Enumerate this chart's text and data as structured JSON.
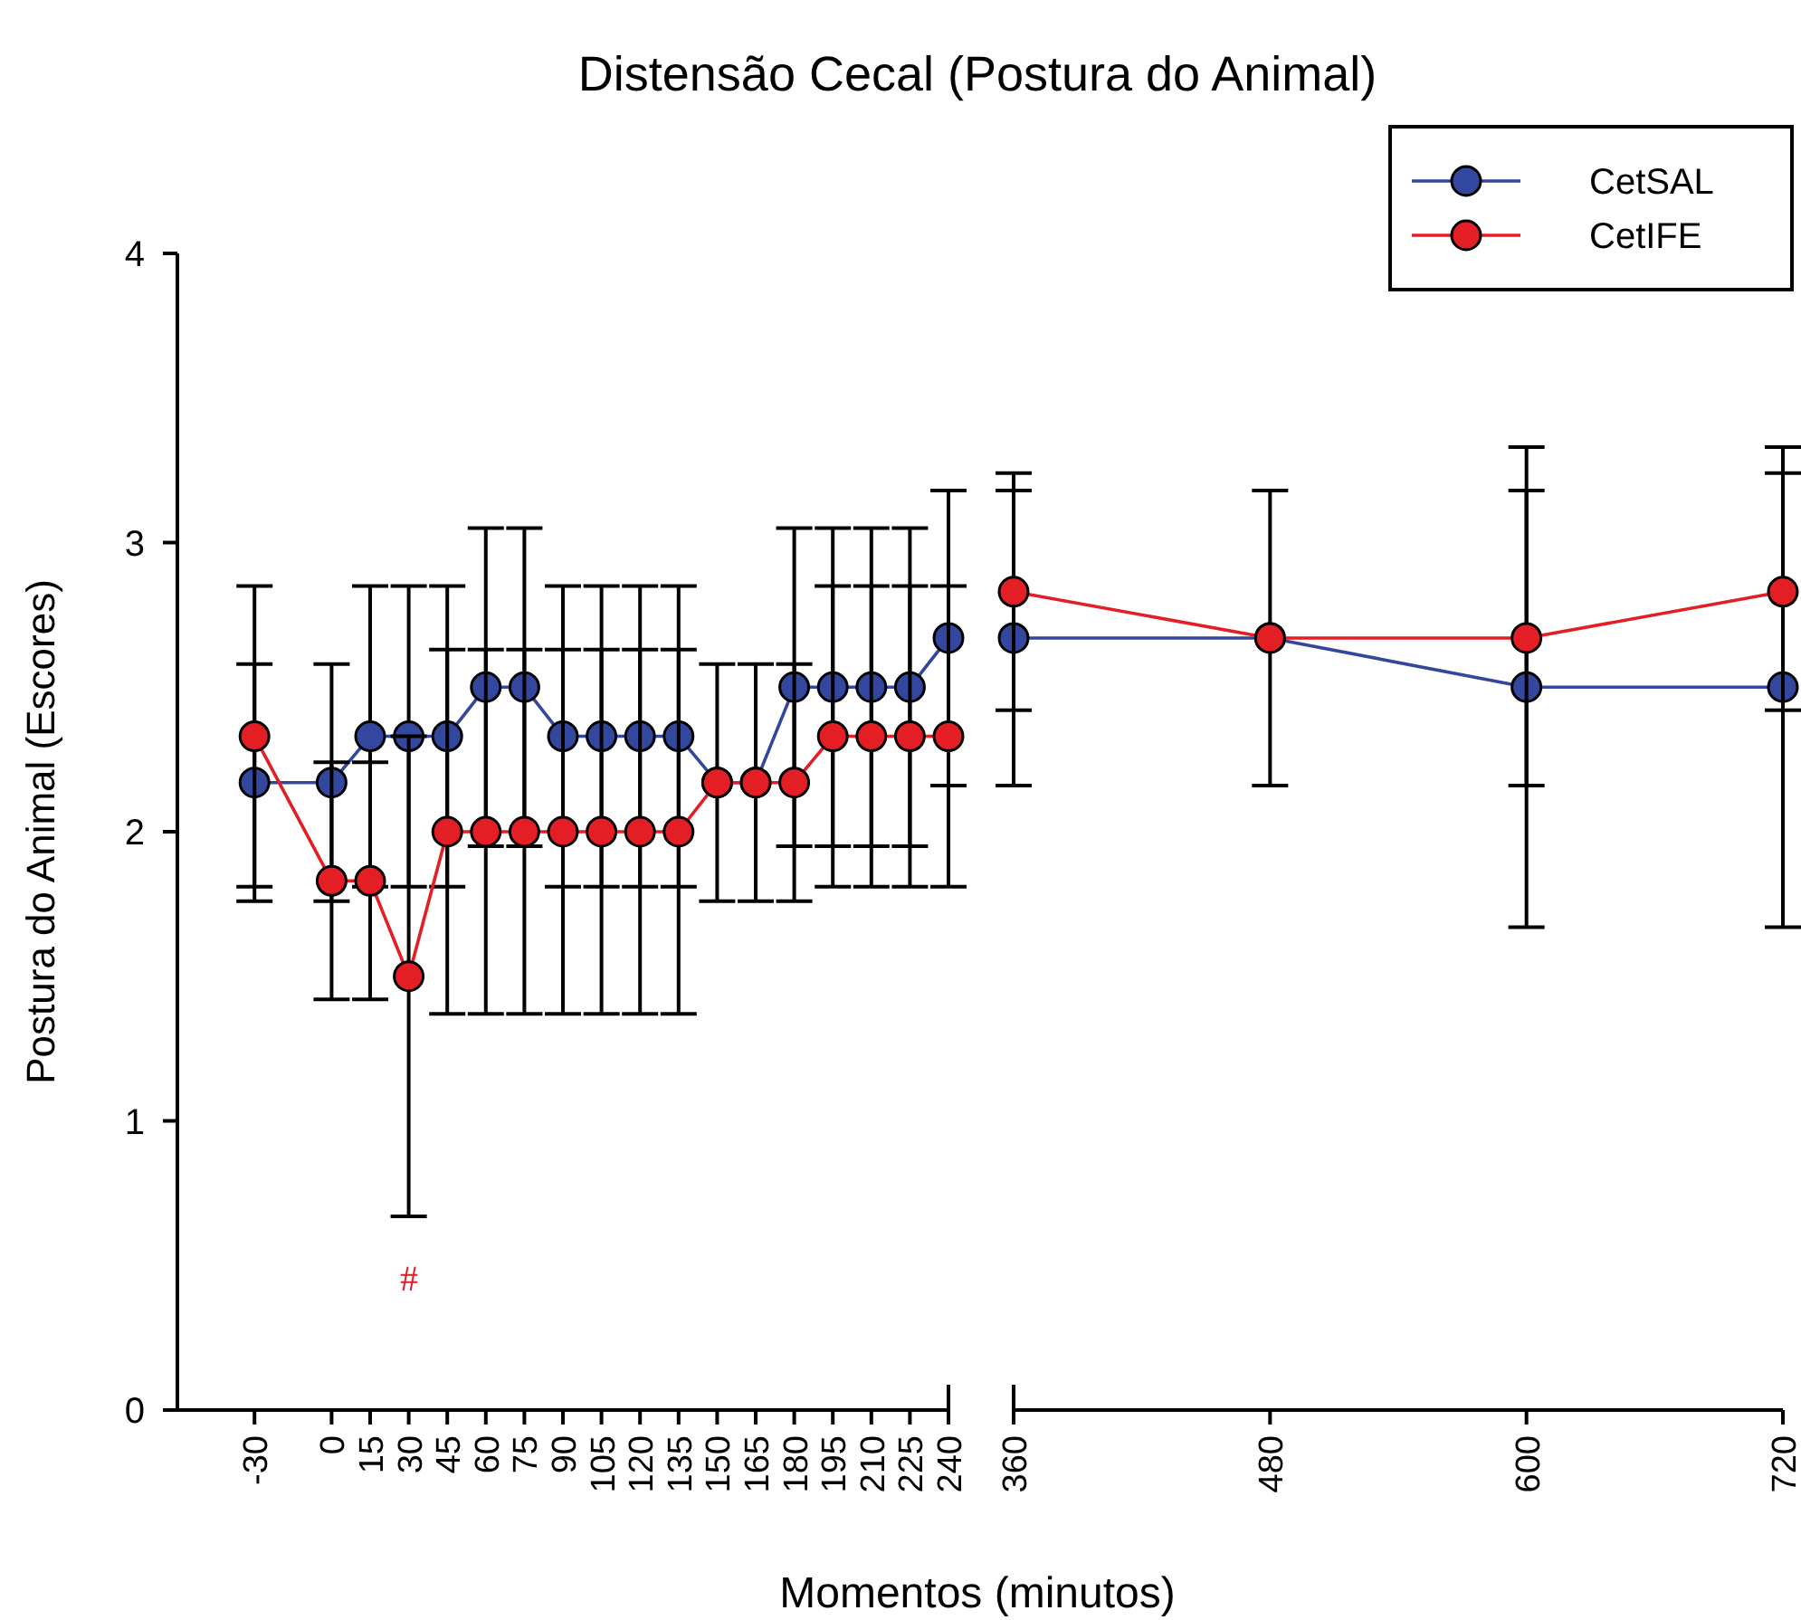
{
  "chart_data": [
    {
      "type": "line",
      "title": "Distensão Cecal (Postura do Animal)",
      "xlabel": "Momentos (minutos)",
      "ylabel": "Postura do Animal (Escores)",
      "x": [
        -30,
        0,
        15,
        30,
        45,
        60,
        75,
        90,
        105,
        120,
        135,
        150,
        165,
        180,
        195,
        210,
        225,
        240
      ],
      "series": [
        {
          "color": "#34479e",
          "values": [
            2.17,
            2.17,
            2.33,
            2.33,
            2.33,
            2.5,
            2.5,
            2.33,
            2.33,
            2.33,
            2.33,
            2.17,
            2.17,
            2.5,
            2.5,
            2.5,
            2.5,
            2.67
          ],
          "errors": [
            0.41,
            0.41,
            0.52,
            0.52,
            0.52,
            0.55,
            0.55,
            0.52,
            0.52,
            0.52,
            0.52,
            0.41,
            0.41,
            0.55,
            0.55,
            0.55,
            0.55,
            0.51
          ]
        },
        {
          "color": "#e31e24",
          "values": [
            2.33,
            1.83,
            1.83,
            1.5,
            2.0,
            2.0,
            2.0,
            2.0,
            2.0,
            2.0,
            2.0,
            2.17,
            2.17,
            2.17,
            2.33,
            2.33,
            2.33,
            2.33
          ],
          "errors": [
            0.52,
            0.41,
            0.41,
            0.83,
            0.63,
            0.63,
            0.63,
            0.63,
            0.63,
            0.63,
            0.63,
            0.41,
            0.41,
            0.41,
            0.52,
            0.52,
            0.52,
            0.52
          ]
        }
      ],
      "xlim": [
        -60,
        240
      ],
      "xticks": [
        -30,
        0,
        15,
        30,
        45,
        60,
        75,
        90,
        105,
        120,
        135,
        150,
        165,
        180,
        195,
        210,
        225,
        240
      ],
      "ylim": [
        0,
        4
      ],
      "yticks": [
        0,
        1,
        2,
        3,
        4
      ],
      "marker": "circle",
      "annotations": [
        "#"
      ]
    },
    {
      "type": "line",
      "x": [
        360,
        480,
        600,
        720
      ],
      "series": [
        {
          "name": "CetSAL",
          "color": "#34479e",
          "values": [
            2.67,
            2.67,
            2.5,
            2.5
          ],
          "errors": [
            0.51,
            0.51,
            0.83,
            0.83
          ]
        },
        {
          "name": "CetIFE",
          "color": "#e31e24",
          "values": [
            2.83,
            2.67,
            2.67,
            2.83
          ],
          "errors": [
            0.41,
            0.51,
            0.51,
            0.41
          ]
        }
      ],
      "xlim": [
        360,
        720
      ],
      "xticks": [
        360,
        480,
        600,
        720
      ],
      "ylim": [
        0,
        4
      ],
      "yticks": [
        0,
        1,
        2,
        3,
        4
      ],
      "tick_labels": "x",
      "marker": "circle",
      "legend": "top right"
    }
  ]
}
